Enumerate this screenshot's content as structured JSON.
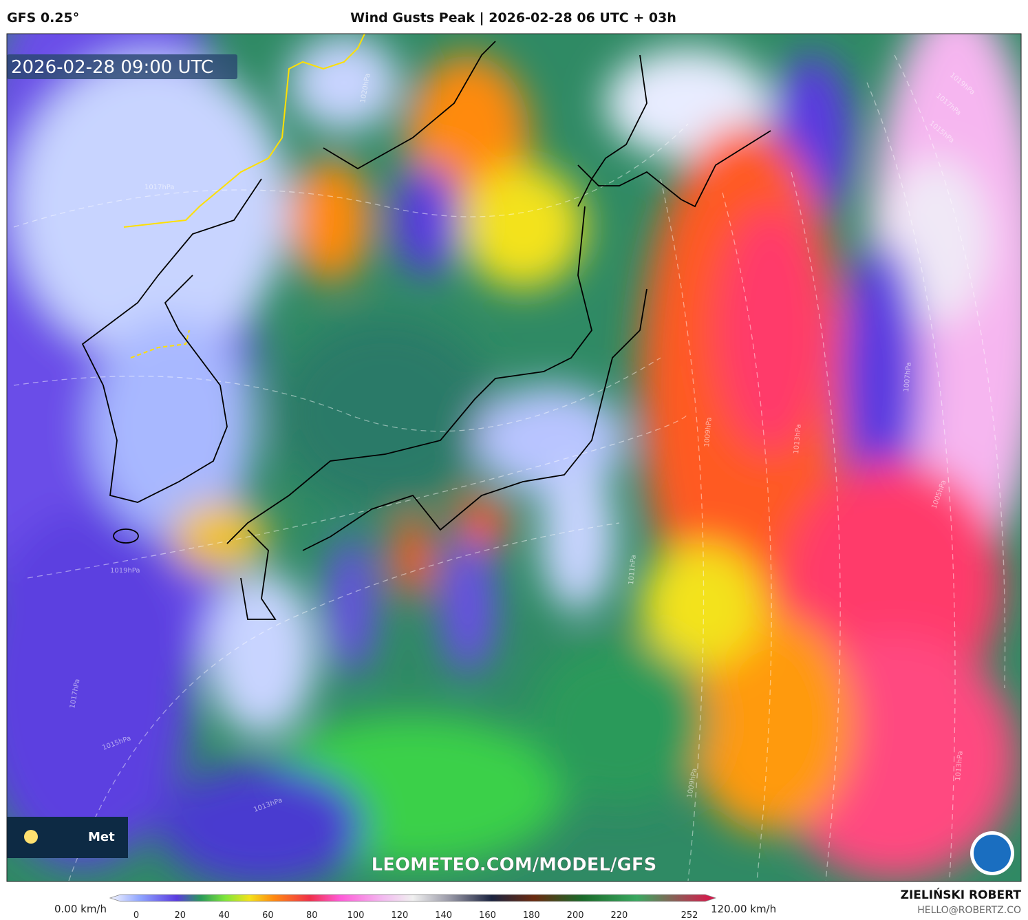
{
  "header": {
    "model": "GFS 0.25°",
    "title": "Wind Gusts Peak | 2026-02-28 06 UTC + 03h"
  },
  "map": {
    "valid_time": "2026-02-28 09:00 UTC",
    "watermark": "LEOMETEO.COM/MODEL/GFS",
    "logo_text": "Met",
    "isobar_labels": [
      "1020hPa",
      "1017hPa",
      "1019hPa",
      "1017hPa",
      "1015hPa",
      "1013hPa",
      "1009hPa",
      "1011hPa",
      "1013hPa",
      "1007hPa",
      "1005hPa",
      "1009hPa",
      "1013hPa",
      "1019hPa",
      "1017hPa",
      "1015hPa"
    ]
  },
  "legend": {
    "min_label": "0.00 km/h",
    "max_label": "120.00 km/h",
    "ticks": [
      0,
      20,
      40,
      60,
      80,
      100,
      120,
      140,
      160,
      180,
      200,
      220,
      252
    ]
  },
  "credit": {
    "author": "ZIELIŃSKI ROBERT",
    "email": "HELLO@ROBERTZ.CO"
  }
}
